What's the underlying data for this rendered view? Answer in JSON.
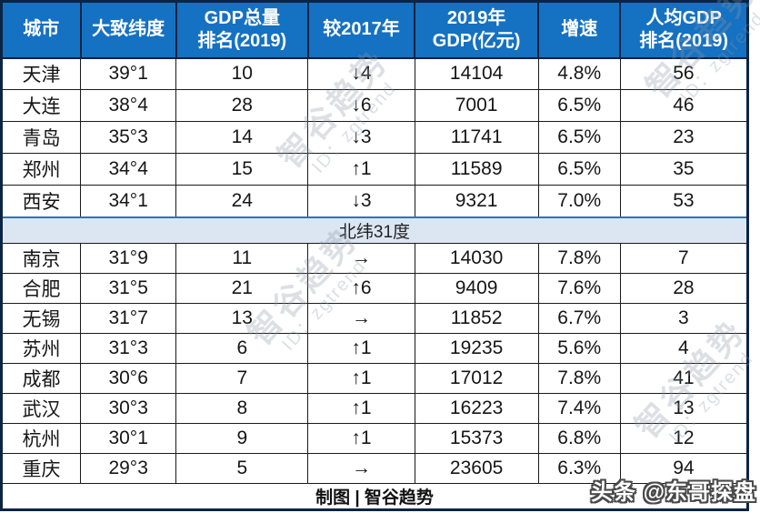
{
  "page": {
    "byline": "头条 @东哥探盘"
  },
  "watermark": {
    "line1": "智谷趋势",
    "line2": "ID：zgtrend"
  },
  "colors": {
    "header_bg": "#1571c2",
    "header_text": "#ffffff",
    "grid_dark": "#0c2443",
    "grid": "#1a1a1a",
    "separator_bg": "#dce6f2",
    "separator_top": "#2e74b5",
    "up_red": "#c00000",
    "down_green": "#27a85f",
    "flat_black": "#1a1a1a"
  },
  "chart_data": {
    "type": "table",
    "title": "",
    "footer": "制图 | 智谷趋势",
    "columns": [
      {
        "key": "city",
        "label": "城市"
      },
      {
        "key": "latitude",
        "label": "大致纬度"
      },
      {
        "key": "gdp_rank",
        "label": "GDP总量\n排名(2019)"
      },
      {
        "key": "change",
        "label": "较2017年"
      },
      {
        "key": "gdp_2019",
        "label": "2019年\nGDP(亿元)"
      },
      {
        "key": "growth",
        "label": "增速"
      },
      {
        "key": "per_capita_rank",
        "label": "人均GDP\n排名(2019)"
      }
    ],
    "groups": [
      {
        "separator": null,
        "rows": [
          {
            "city": "天津",
            "latitude": "39°1",
            "gdp_rank": "10",
            "change": "↓4",
            "change_dir": "down",
            "gdp_2019": "14104",
            "growth": "4.8%",
            "per_capita_rank": "56"
          },
          {
            "city": "大连",
            "latitude": "38°4",
            "gdp_rank": "28",
            "change": "↓6",
            "change_dir": "down",
            "gdp_2019": "7001",
            "growth": "6.5%",
            "per_capita_rank": "46"
          },
          {
            "city": "青岛",
            "latitude": "35°3",
            "gdp_rank": "14",
            "change": "↓3",
            "change_dir": "down",
            "gdp_2019": "11741",
            "growth": "6.5%",
            "per_capita_rank": "23"
          },
          {
            "city": "郑州",
            "latitude": "34°4",
            "gdp_rank": "15",
            "change": "↑1",
            "change_dir": "up",
            "gdp_2019": "11589",
            "growth": "6.5%",
            "per_capita_rank": "35"
          },
          {
            "city": "西安",
            "latitude": "34°1",
            "gdp_rank": "24",
            "change": "↓3",
            "change_dir": "down",
            "gdp_2019": "9321",
            "growth": "7.0%",
            "per_capita_rank": "53"
          }
        ]
      },
      {
        "separator": "北纬31度",
        "rows": [
          {
            "city": "南京",
            "latitude": "31°9",
            "gdp_rank": "11",
            "change": "→",
            "change_dir": "flat",
            "gdp_2019": "14030",
            "growth": "7.8%",
            "per_capita_rank": "7"
          },
          {
            "city": "合肥",
            "latitude": "31°5",
            "gdp_rank": "21",
            "change": "↑6",
            "change_dir": "up",
            "gdp_2019": "9409",
            "growth": "7.6%",
            "per_capita_rank": "28"
          },
          {
            "city": "无锡",
            "latitude": "31°7",
            "gdp_rank": "13",
            "change": "→",
            "change_dir": "flat",
            "gdp_2019": "11852",
            "growth": "6.7%",
            "per_capita_rank": "3"
          },
          {
            "city": "苏州",
            "latitude": "31°3",
            "gdp_rank": "6",
            "change": "↑1",
            "change_dir": "up",
            "gdp_2019": "19235",
            "growth": "5.6%",
            "per_capita_rank": "4"
          },
          {
            "city": "成都",
            "latitude": "30°6",
            "gdp_rank": "7",
            "change": "↑1",
            "change_dir": "up",
            "gdp_2019": "17012",
            "growth": "7.8%",
            "per_capita_rank": "41"
          },
          {
            "city": "武汉",
            "latitude": "30°3",
            "gdp_rank": "8",
            "change": "↑1",
            "change_dir": "up",
            "gdp_2019": "16223",
            "growth": "7.4%",
            "per_capita_rank": "13"
          },
          {
            "city": "杭州",
            "latitude": "30°1",
            "gdp_rank": "9",
            "change": "↑1",
            "change_dir": "up",
            "gdp_2019": "15373",
            "growth": "6.8%",
            "per_capita_rank": "12"
          },
          {
            "city": "重庆",
            "latitude": "29°3",
            "gdp_rank": "5",
            "change": "→",
            "change_dir": "flat",
            "gdp_2019": "23605",
            "growth": "6.3%",
            "per_capita_rank": "94"
          }
        ]
      }
    ]
  }
}
